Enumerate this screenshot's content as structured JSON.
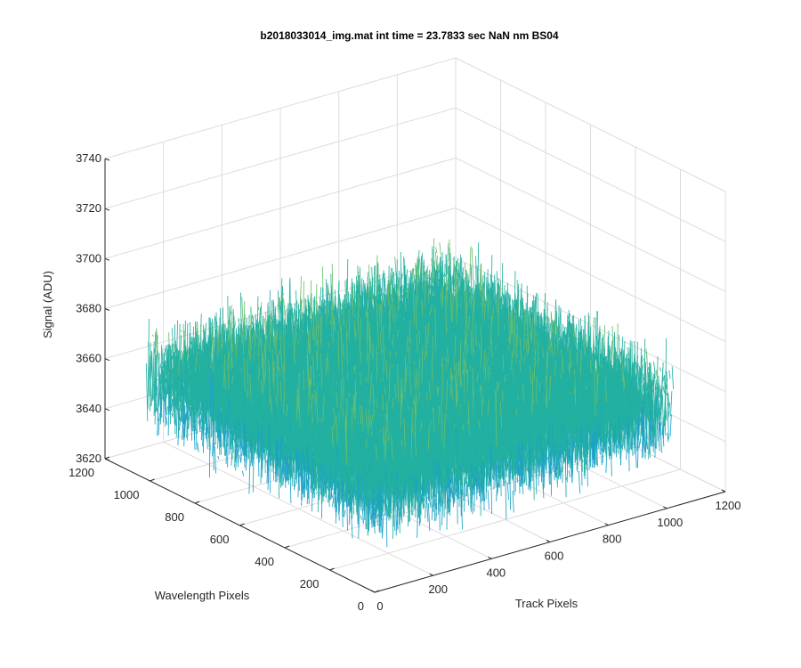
{
  "chart_data": {
    "type": "surface",
    "title": "b2018033014_img.mat int time = 23.7833 sec   NaN nm BS04",
    "xlabel": "Track Pixels",
    "ylabel": "Wavelength Pixels",
    "zlabel": "Signal (ADU)",
    "xlim": [
      0,
      1200
    ],
    "ylim": [
      0,
      1200
    ],
    "zlim": [
      3620,
      3740
    ],
    "xticks": [
      "0",
      "200",
      "400",
      "600",
      "800",
      "1000",
      "1200"
    ],
    "yticks": [
      "0",
      "200",
      "400",
      "600",
      "800",
      "1000",
      "1200"
    ],
    "zticks": [
      "3620",
      "3640",
      "3660",
      "3680",
      "3700",
      "3720",
      "3740"
    ],
    "data_extent": {
      "x": [
        0,
        1024
      ],
      "y": [
        0,
        1024
      ]
    },
    "signal_mean": 3660,
    "signal_range": [
      3615,
      3725
    ],
    "colormap": [
      "#1f6fd6",
      "#1aa0c8",
      "#23b0a0",
      "#6abf6e",
      "#c8bf4a"
    ],
    "grid": true,
    "view": "3d-isometric"
  }
}
